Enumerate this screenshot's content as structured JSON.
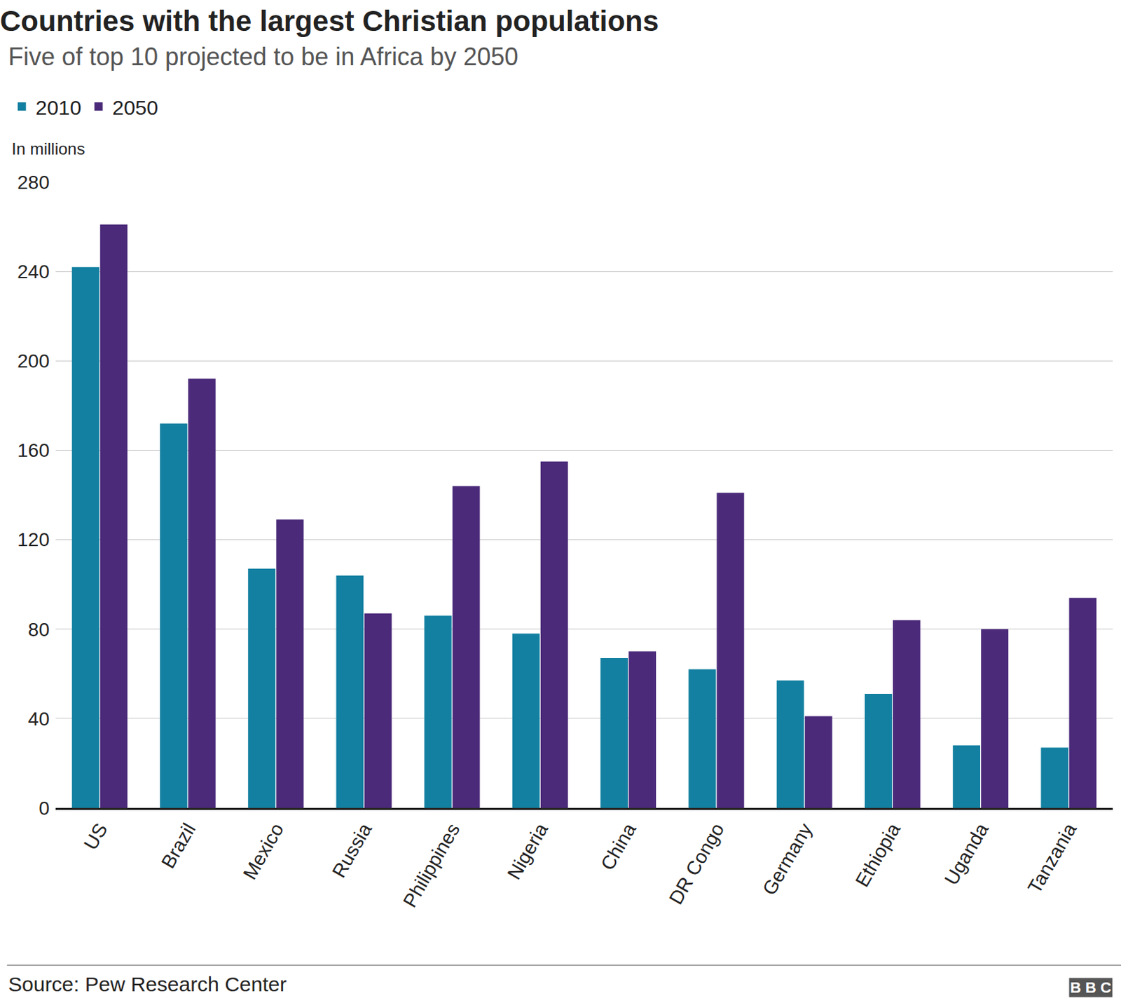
{
  "chart_data": {
    "type": "bar",
    "title": "Countries with the largest Christian populations",
    "subtitle": "Five of top 10 projected to be in Africa by 2050",
    "ylabel": "In millions",
    "source": "Source: Pew Research Center",
    "credit": "BBC",
    "categories": [
      "US",
      "Brazil",
      "Mexico",
      "Russia",
      "Philippines",
      "Nigeria",
      "China",
      "DR Congo",
      "Germany",
      "Ethiopia",
      "Uganda",
      "Tanzania"
    ],
    "series": [
      {
        "name": "2010",
        "color": "#1380a1",
        "values": [
          242,
          172,
          107,
          104,
          86,
          78,
          67,
          62,
          57,
          51,
          28,
          27
        ]
      },
      {
        "name": "2050",
        "color": "#4b2a7a",
        "values": [
          261,
          192,
          129,
          87,
          144,
          155,
          70,
          141,
          41,
          84,
          80,
          94
        ]
      }
    ],
    "ylim": [
      0,
      280
    ],
    "yticks": [
      0,
      40,
      80,
      120,
      160,
      200,
      240,
      280
    ],
    "grid": true,
    "legend": "top-left"
  }
}
